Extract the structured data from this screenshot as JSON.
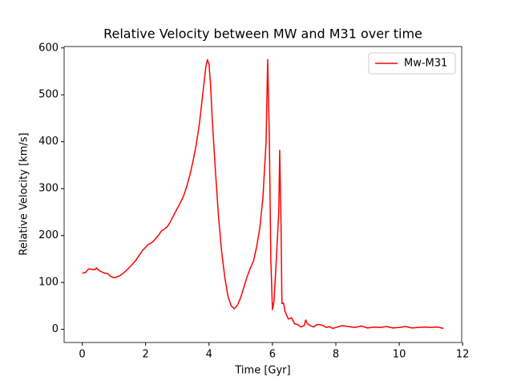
{
  "chart_data": {
    "type": "line",
    "title": "Relative Velocity between MW and M31 over time",
    "xlabel": "Time [Gyr]",
    "ylabel": "Relative Velocity [km/s]",
    "x": [
      0,
      0.1,
      0.2,
      0.3,
      0.4,
      0.45,
      0.5,
      0.6,
      0.7,
      0.8,
      0.9,
      1.0,
      1.1,
      1.2,
      1.3,
      1.4,
      1.5,
      1.6,
      1.7,
      1.8,
      1.9,
      2.0,
      2.1,
      2.2,
      2.3,
      2.4,
      2.5,
      2.6,
      2.7,
      2.8,
      2.9,
      3.0,
      3.1,
      3.2,
      3.3,
      3.4,
      3.5,
      3.6,
      3.7,
      3.8,
      3.9,
      3.95,
      4.0,
      4.05,
      4.1,
      4.2,
      4.3,
      4.4,
      4.5,
      4.6,
      4.7,
      4.8,
      4.9,
      5.0,
      5.1,
      5.2,
      5.3,
      5.4,
      5.5,
      5.6,
      5.7,
      5.8,
      5.85,
      5.9,
      5.95,
      6.0,
      6.05,
      6.1,
      6.2,
      6.23,
      6.27,
      6.3,
      6.35,
      6.4,
      6.5,
      6.6,
      6.7,
      6.8,
      6.9,
      7.0,
      7.05,
      7.1,
      7.2,
      7.3,
      7.4,
      7.5,
      7.6,
      7.7,
      7.8,
      7.9,
      8.0,
      8.1,
      8.2,
      8.4,
      8.6,
      8.8,
      9.0,
      9.2,
      9.4,
      9.6,
      9.8,
      10.0,
      10.2,
      10.4,
      10.6,
      10.8,
      11.0,
      11.2,
      11.4
    ],
    "series": [
      {
        "name": "Mw-M31",
        "color": "#ff0000",
        "values": [
          120,
          121,
          129,
          128,
          127,
          131,
          127,
          123,
          120,
          119,
          113,
          110,
          112,
          115,
          120,
          126,
          133,
          140,
          148,
          158,
          168,
          175,
          182,
          185,
          192,
          200,
          210,
          214,
          220,
          232,
          245,
          258,
          270,
          285,
          305,
          330,
          360,
          395,
          440,
          500,
          560,
          575,
          565,
          520,
          450,
          340,
          240,
          165,
          110,
          70,
          50,
          44,
          52,
          68,
          90,
          112,
          130,
          145,
          175,
          215,
          280,
          400,
          575,
          420,
          150,
          42,
          60,
          120,
          250,
          382,
          230,
          55,
          56,
          38,
          22,
          25,
          12,
          10,
          5,
          8,
          20,
          12,
          8,
          5,
          10,
          10,
          8,
          4,
          6,
          2,
          4,
          6,
          8,
          6,
          4,
          7,
          3,
          5,
          4,
          6,
          3,
          4,
          6,
          3,
          4,
          5,
          4,
          5,
          2
        ]
      }
    ],
    "xlim": [
      -0.57,
      11.97
    ],
    "ylim": [
      -28,
      603
    ],
    "xticks": [
      0,
      2,
      4,
      6,
      8,
      10,
      12
    ],
    "yticks": [
      0,
      100,
      200,
      300,
      400,
      500,
      600
    ],
    "grid": false,
    "legend": "upper right"
  }
}
